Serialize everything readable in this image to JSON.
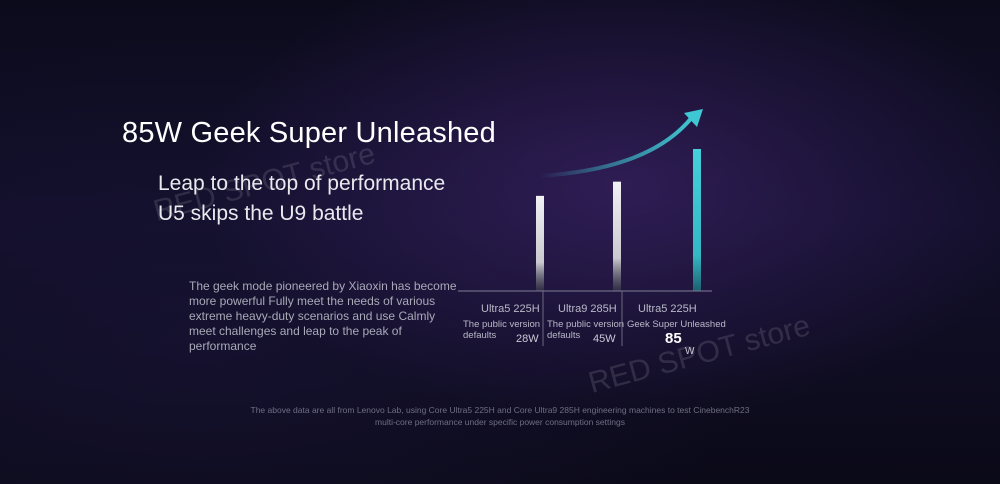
{
  "headline": "85W Geek Super Unleashed",
  "subheadline_1": "Leap to the top of performance",
  "subheadline_2": "U5 skips the U9 battle",
  "description": "The geek mode pioneered by Xiaoxin has become more powerful Fully meet the needs of various extreme heavy-duty scenarios and use Calmly meet challenges and leap to the peak of performance",
  "footnote_1": "The above data are all from Lenovo Lab, using Core Ultra5 225H and Core Ultra9 285H engineering machines to test CinebenchR23",
  "footnote_2": "multi-core performance under specific power consumption settings",
  "watermark": "RED SPOT store",
  "colors": {
    "bar_gray": "#e2e2e6",
    "bar_highlight": "#3fc7d3",
    "axis": "#8a8aa0"
  },
  "chart_data": {
    "type": "bar",
    "ylabel": "",
    "unit": "W",
    "categories": [
      {
        "name": "Ultra5 225H",
        "desc_1": "The public version",
        "desc_2": "defaults",
        "value_num": "28",
        "value_unit": "W",
        "highlight": false
      },
      {
        "name": "Ultra9 285H",
        "desc_1": "The public version",
        "desc_2": "defaults",
        "value_num": "45",
        "value_unit": "W",
        "highlight": false
      },
      {
        "name": "Ultra5 225H",
        "desc_1": "Geek Super Unleashed",
        "desc_2": "",
        "value_num": "85",
        "value_unit": "W",
        "highlight": true
      }
    ],
    "values": [
      28,
      45,
      85
    ],
    "relative_bar_heights": [
      0.67,
      0.77,
      1.0
    ]
  }
}
